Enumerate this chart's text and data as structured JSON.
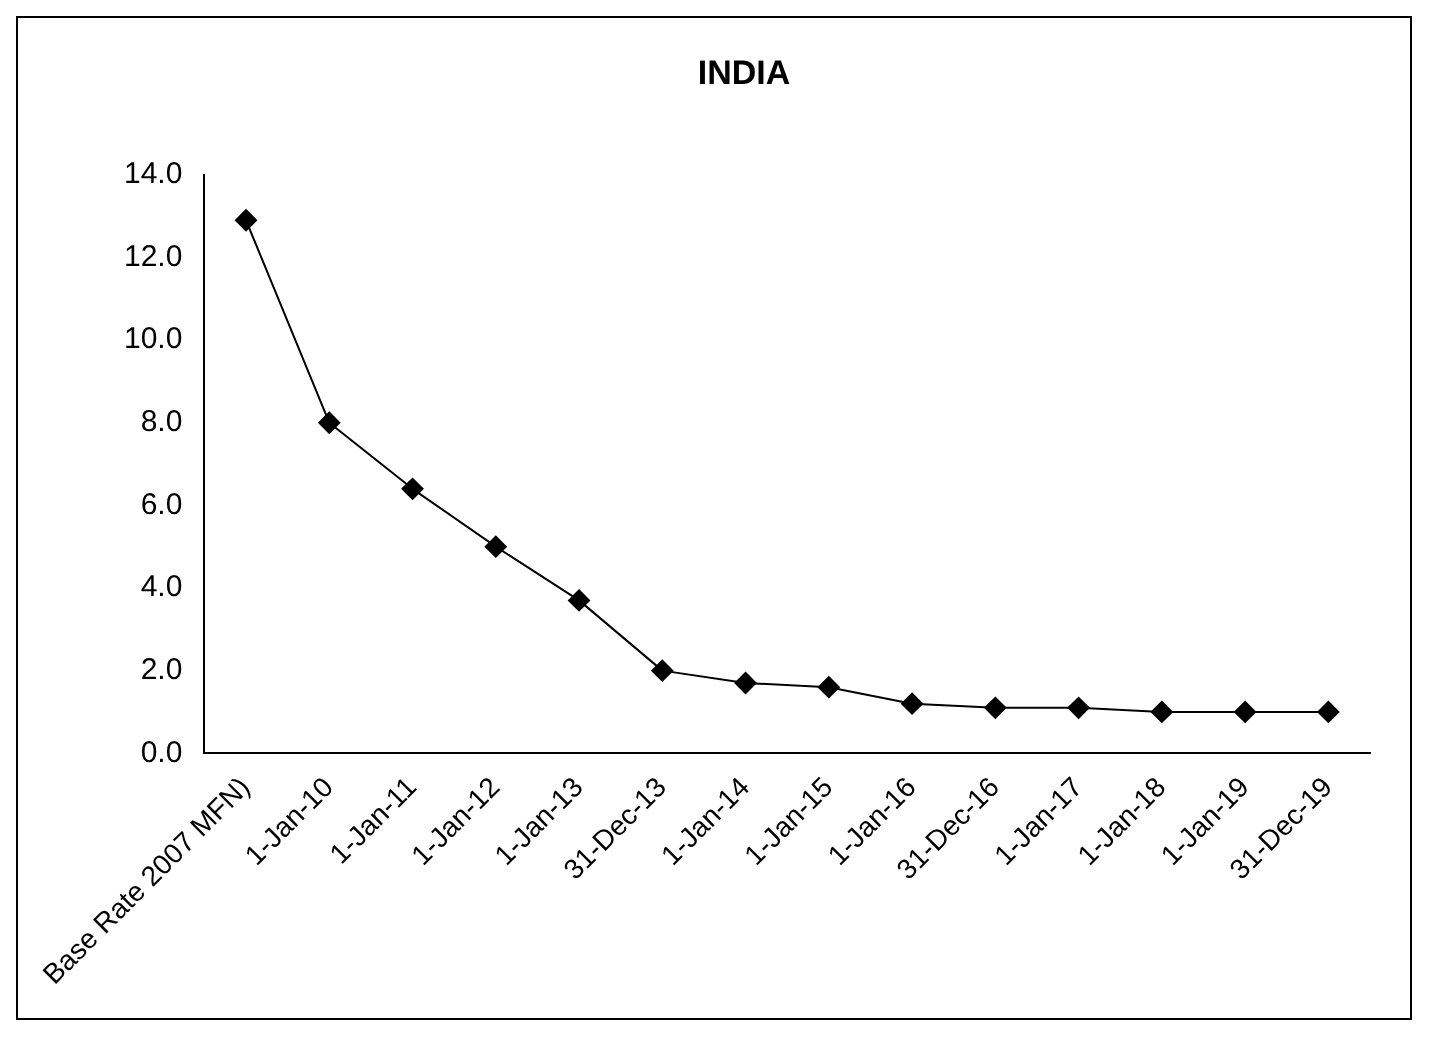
{
  "chart_data": {
    "type": "line",
    "title": "INDIA",
    "categories": [
      "Base Rate 2007 MFN)",
      "1-Jan-10",
      "1-Jan-11",
      "1-Jan-12",
      "1-Jan-13",
      "31-Dec-13",
      "1-Jan-14",
      "1-Jan-15",
      "1-Jan-16",
      "31-Dec-16",
      "1-Jan-17",
      "1-Jan-18",
      "1-Jan-19",
      "31-Dec-19"
    ],
    "series": [
      {
        "color": "#000000",
        "values": [
          12.9,
          8.0,
          6.4,
          5.0,
          3.7,
          2.0,
          1.7,
          1.6,
          1.2,
          1.1,
          1.1,
          1.0,
          1.0,
          1.0
        ]
      }
    ],
    "ylim": [
      0,
      14
    ],
    "yticks": [
      {
        "value": 0,
        "label": "0.0"
      },
      {
        "value": 2,
        "label": "2.0"
      },
      {
        "value": 4,
        "label": "4.0"
      },
      {
        "value": 6,
        "label": "6.0"
      },
      {
        "value": 8,
        "label": "8.0"
      },
      {
        "value": 10,
        "label": "10.0"
      },
      {
        "value": 12,
        "label": "12.0"
      },
      {
        "value": 14,
        "label": "14.0"
      }
    ],
    "grid": false,
    "legend": false,
    "marker": "diamond",
    "line_style": "solid"
  }
}
